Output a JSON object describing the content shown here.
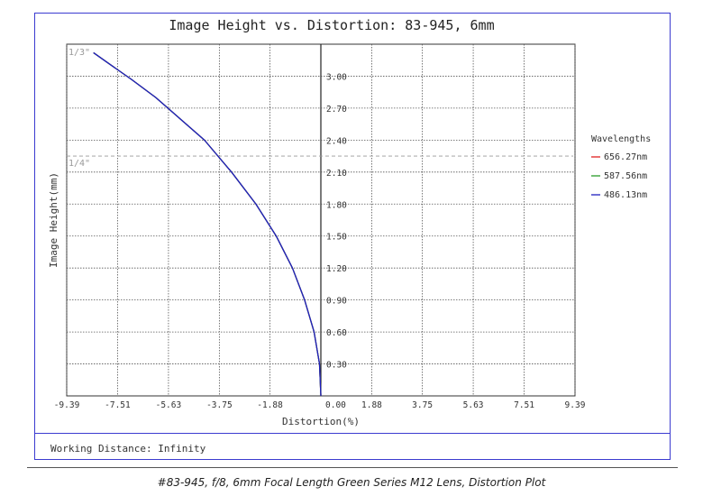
{
  "chart_data": {
    "type": "line",
    "title": "Image Height vs. Distortion: 83-945, 6mm",
    "xlabel": "Distortion(%)",
    "ylabel": "Image Height(mm)",
    "xlim": [
      -9.39,
      9.39
    ],
    "ylim": [
      0,
      3.3
    ],
    "x_ticks": [
      "-9.39",
      "-7.51",
      "-5.63",
      "-3.75",
      "-1.88",
      "0.00",
      "1.88",
      "3.75",
      "5.63",
      "7.51",
      "9.39"
    ],
    "x_tick_values": [
      -9.39,
      -7.51,
      -5.63,
      -3.75,
      -1.88,
      0.0,
      1.88,
      3.75,
      5.63,
      7.51,
      9.39
    ],
    "y_ticks": [
      "0.30",
      "0.60",
      "0.90",
      "1.20",
      "1.50",
      "1.80",
      "2.10",
      "2.40",
      "2.70",
      "3.00"
    ],
    "y_tick_values": [
      0.3,
      0.6,
      0.9,
      1.2,
      1.5,
      1.8,
      2.1,
      2.4,
      2.7,
      3.0
    ],
    "grid": true,
    "legend_title": "Wavelengths",
    "legend_position": "right",
    "series": [
      {
        "name": "656.27nm",
        "color": "#e02020",
        "x": [
          0,
          -0.05,
          -0.25,
          -0.6,
          -1.05,
          -1.65,
          -2.4,
          -3.3,
          -4.3,
          -5.2,
          -6.1,
          -7.0,
          -7.9,
          -8.4
        ],
        "y": [
          0,
          0.3,
          0.6,
          0.9,
          1.2,
          1.5,
          1.8,
          2.1,
          2.4,
          2.6,
          2.8,
          2.97,
          3.13,
          3.22
        ]
      },
      {
        "name": "587.56nm",
        "color": "#2a9a2a",
        "x": [
          0,
          -0.05,
          -0.25,
          -0.6,
          -1.05,
          -1.65,
          -2.4,
          -3.3,
          -4.3,
          -5.2,
          -6.1,
          -7.0,
          -7.9,
          -8.4
        ],
        "y": [
          0,
          0.3,
          0.6,
          0.9,
          1.2,
          1.5,
          1.8,
          2.1,
          2.4,
          2.6,
          2.8,
          2.97,
          3.13,
          3.22
        ]
      },
      {
        "name": "486.13nm",
        "color": "#2020c0",
        "x": [
          0,
          -0.05,
          -0.25,
          -0.6,
          -1.05,
          -1.65,
          -2.4,
          -3.3,
          -4.3,
          -5.2,
          -6.1,
          -7.0,
          -7.9,
          -8.4
        ],
        "y": [
          0,
          0.3,
          0.6,
          0.9,
          1.2,
          1.5,
          1.8,
          2.1,
          2.4,
          2.6,
          2.8,
          2.97,
          3.13,
          3.22
        ]
      }
    ],
    "annotations": [
      {
        "label": "1/3\"",
        "y": 3.3
      },
      {
        "label": "1/4\"",
        "y": 2.25
      }
    ]
  },
  "footer": {
    "working_distance": "Working Distance: Infinity"
  },
  "caption": "#83-945, f/8, 6mm Focal Length Green Series M12 Lens, Distortion Plot"
}
